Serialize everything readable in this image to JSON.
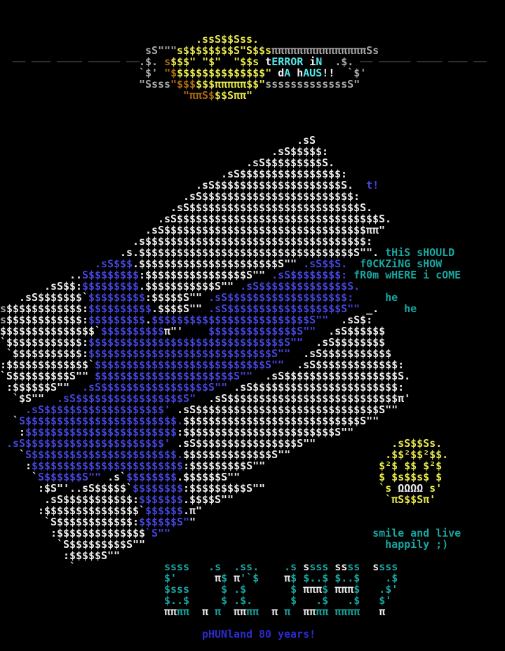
{
  "title": "terror in da haus - ascii art",
  "phrases": {
    "header_line1": "tERROR iN",
    "header_line2": "dA hAUS!!",
    "flag_note": "t!",
    "side_note_1": "tHiS sHOULD",
    "side_note_2": "f0CKZiNG sHOW",
    "side_note_3": "fR0m wHERE i cOME",
    "laugh_1": "he",
    "laugh_2": "he",
    "smiley_caption_1": "smile and live",
    "smiley_caption_2": "happily ;)",
    "footer": "pHUNland 80 years!"
  },
  "colors": {
    ".": "#000000",
    "W": "#ededed",
    "G": "#a8a8a8",
    "D": "#3f3f3f",
    "Y": "#e9e94e",
    "O": "#b06a10",
    "B": "#4545dd",
    "N": "#2b2bcc",
    "C": "#18a5a0",
    "T": "#55e6e6"
  },
  "art": [
    [],
    [],
    [],
    [
      [
        ".",
        "                               "
      ],
      [
        "Y",
        ".ssS$$Sss."
      ]
    ],
    [
      [
        ".",
        "                       "
      ],
      [
        "G",
        "sS\"\"\""
      ],
      [
        "Y",
        "s$$$$$$$$S\"S$$s"
      ],
      [
        "G",
        "πππππππππππππππ"
      ],
      [
        "G",
        "Ss"
      ]
    ],
    [
      [
        ".",
        "  "
      ],
      [
        "D",
        "── ─── ──── ───── ──"
      ],
      [
        "G",
        ".$."
      ],
      [
        ".ated",
        " "
      ],
      [
        "O",
        "s"
      ],
      [
        "Y",
        "$$$\""
      ],
      [
        ".ad",
        " "
      ],
      [
        "Y",
        "\"$\""
      ],
      [
        ".",
        "  "
      ],
      [
        "Y",
        "\"$$s"
      ],
      [
        ".t",
        " "
      ],
      [
        "W",
        "t"
      ],
      [
        "T",
        "ERROR"
      ],
      [
        ".s",
        " "
      ],
      [
        "W",
        "i"
      ],
      [
        "T",
        "N"
      ],
      [
        ".",
        "  "
      ],
      [
        "G",
        ".$."
      ],
      [
        ".d",
        " "
      ],
      [
        "D",
        "── ───── ──── ─── ──"
      ]
    ],
    [
      [
        ".",
        "                      "
      ],
      [
        "G",
        "`$'"
      ],
      [
        ".s",
        " "
      ],
      [
        "O",
        "\"$"
      ],
      [
        "Y",
        "$$$$$$$$$$$$$$\""
      ],
      [
        ".w",
        " "
      ],
      [
        "W",
        "d"
      ],
      [
        "T",
        "A"
      ],
      [
        ".h",
        " "
      ],
      [
        "W",
        "h"
      ],
      [
        "T",
        "AUS"
      ],
      [
        "W",
        "!!"
      ],
      [
        ".",
        "  "
      ],
      [
        "G",
        "`$'"
      ]
    ],
    [
      [
        ".",
        "                      "
      ],
      [
        "G",
        "\"Ssss"
      ],
      [
        "O",
        "\"$$$"
      ],
      [
        "Y",
        "$$$πππππ$$\""
      ],
      [
        "G",
        "sssssssssssssS\""
      ]
    ],
    [
      [
        ".",
        "                             "
      ],
      [
        "O",
        "\"ππS$"
      ],
      [
        "Y",
        "$$Sππ\""
      ]
    ],
    [],
    [],
    [],
    [
      [
        ".",
        "                                               "
      ],
      [
        "W",
        ".sS"
      ]
    ],
    [
      [
        ".",
        "                                           "
      ],
      [
        "W",
        ".sS$$$$$:"
      ]
    ],
    [
      [
        ".",
        "                                       "
      ],
      [
        "W",
        ".sS$$$$$$$$$S."
      ]
    ],
    [
      [
        ".",
        "                                   "
      ],
      [
        "W",
        ".sS$$$$$$$$$$$$$$$$:"
      ]
    ],
    [
      [
        ".",
        "                               "
      ],
      [
        "W",
        ".sS$$$$$$$$$$$$$$$$$$$$S."
      ],
      [
        ".",
        "  "
      ],
      [
        "B",
        "t!"
      ]
    ],
    [
      [
        ".",
        "                             "
      ],
      [
        "W",
        ".sS$$$$$$$$$$$$$$$$$$$$$$$$:"
      ]
    ],
    [
      [
        ".",
        "                           "
      ],
      [
        "W",
        ".sS$$$$$$$$$$$$$$$$$$$$$$$$$$$S."
      ]
    ],
    [
      [
        ".",
        "                         "
      ],
      [
        "W",
        ".sS$$$$$$$$$$$$$$$$$$$$$$$$$$$$$$$$S."
      ]
    ],
    [
      [
        ".",
        "                       "
      ],
      [
        "W",
        ".sS$$$$$$$$$$$$$$$$$$$$$$$$$$$$$$$$ππ\""
      ]
    ],
    [
      [
        ".",
        "                     "
      ],
      [
        "W",
        ".s$$$$$$$$$$$$$$$$$$$$$$$$$$$$$$$$$$$:"
      ]
    ],
    [
      [
        ".",
        "                   "
      ],
      [
        "W",
        ".s.$$$$$$$$$$$$$$$$$$$$$$$$$$$$$$$$$$S\"\"."
      ],
      [
        ".s",
        " "
      ],
      [
        "C",
        "tHiS sHOULD"
      ]
    ],
    [
      [
        ".",
        "               "
      ],
      [
        "B",
        ".sS$$$"
      ],
      [
        "W",
        ".$$$$$$$$$$$$$$$$$$$$$$S\"\""
      ],
      [
        ".f",
        " "
      ],
      [
        "B",
        ".sS$$S."
      ],
      [
        ".",
        "  "
      ],
      [
        "C",
        "f0CKZiNG sHOW"
      ]
    ],
    [
      [
        ".",
        "           "
      ],
      [
        "W",
        ".."
      ],
      [
        "B",
        "S$$$$$$$$"
      ],
      [
        "W",
        ":$$$$$$$$$$$$$$$$S\"\""
      ],
      [
        ".r",
        " "
      ],
      [
        "B",
        ".sS$$$$$$$$:"
      ],
      [
        ".m",
        " "
      ],
      [
        "C",
        "fR0m wHERE i cOME"
      ]
    ],
    [
      [
        ".",
        "       "
      ],
      [
        "W",
        ".sS$$:"
      ],
      [
        "B",
        "$$$$$$$$$"
      ],
      [
        "W",
        ".$$$$$$$$$$$S\"\""
      ],
      [
        ".b",
        " "
      ],
      [
        "B",
        ".sS$$$$$$$$$$$$$$S."
      ]
    ],
    [
      [
        ".",
        "   "
      ],
      [
        "W",
        ".sS$$$$$$$`"
      ],
      [
        "B",
        "$$$$$$$$$"
      ],
      [
        "W",
        ":$$$$$S\"\""
      ],
      [
        ".n",
        " "
      ],
      [
        "B",
        ".sS$$$$$$$$$$$$$$$$$$$:"
      ],
      [
        ".",
        "     "
      ],
      [
        "C",
        "he"
      ]
    ],
    [
      [
        "G",
        "s"
      ],
      [
        "W",
        "$$$$$$$$$$$$:"
      ],
      [
        "B",
        "$$$$$$$$$$"
      ],
      [
        "W",
        ".$$$$S\"\""
      ],
      [
        ".q",
        " "
      ],
      [
        "B",
        ".sS$$$$$$$$$$$$$$$$$$S\"\""
      ],
      [
        ".u",
        " "
      ],
      [
        "W",
        "_."
      ],
      [
        ".",
        "    "
      ],
      [
        "C",
        "he"
      ]
    ],
    [
      [
        "G",
        "s"
      ],
      [
        "W",
        "$$$$$$$$$$$$:"
      ],
      [
        "B",
        "$$$$$$$$$"
      ],
      [
        "W",
        "."
      ],
      [
        "B",
        "$$$$$$$$$$$$$$$$$$$$$$$$$S\"\""
      ],
      [
        ".",
        "  "
      ],
      [
        "W",
        ".sS$:"
      ]
    ],
    [
      [
        "W",
        "$$$$$$$$$$$$$$$`"
      ],
      [
        "B",
        "$$$$$$$$$$"
      ],
      [
        "W",
        "π\"'"
      ],
      [
        ".",
        "    "
      ],
      [
        "B",
        "$$$$$$$$$$$$$$S\"\""
      ],
      [
        ".",
        "  "
      ],
      [
        "W",
        ".sS$$$$$$"
      ]
    ],
    [
      [
        "W",
        "`$$$$$$$$$$$$:"
      ],
      [
        "B",
        "$$$$$$$$$$$$$$$$$$$$$$$$$$$$$$$S\"\""
      ],
      [
        ".",
        "  "
      ],
      [
        "W",
        ".sS$$$$$$$$"
      ]
    ],
    [
      [
        ".t",
        " "
      ],
      [
        "W",
        "`$$$$$$$$$$$:"
      ],
      [
        "B",
        "$$$$$$$$$$$$$$$$$$$$$$$$$$$$$S\"\""
      ],
      [
        ".",
        "  "
      ],
      [
        "W",
        ".sS$$$$$$$$$$$"
      ]
    ],
    [
      [
        "W",
        ":$$$$$$$$$$$$$`"
      ],
      [
        "B",
        "$$$$$$$$$$$$$$$$$$$$$$$$$$$S\"\""
      ],
      [
        ".",
        "  "
      ],
      [
        "W",
        ".sS$$$$$$$$$$$$$:"
      ]
    ],
    [
      [
        "W",
        "`S$$$$$$$$$S\"\""
      ],
      [
        ".y",
        " "
      ],
      [
        "B",
        "$$$$$$$$$$$$$$$$$$$$$$S\"\""
      ],
      [
        ".",
        "  "
      ],
      [
        "W",
        ".sS$$$$$$$$$$$$$$$$$$S."
      ]
    ],
    [
      [
        ".z",
        " "
      ],
      [
        "W",
        ":$$$$$$S\"\""
      ],
      [
        ".",
        "  "
      ],
      [
        "B",
        ".sS$$$$$$$$$$$$$$$$$S\"\""
      ],
      [
        ".x",
        " "
      ],
      [
        "W",
        ".sS$$$$$$$$$$$$$$$$$$$$$$$:"
      ]
    ],
    [
      [
        ".",
        "  "
      ],
      [
        "W",
        "`$S\"\""
      ],
      [
        ".",
        "  "
      ],
      [
        "B",
        ".sS$$$$$$$$$$$$$$$$$S\""
      ],
      [
        ".",
        "  "
      ],
      [
        "W",
        ".sS$$$$$$$$$$$$$$$$$$$$$$$$$$$π'"
      ]
    ],
    [
      [
        ".",
        "    "
      ],
      [
        "B",
        ".sS$$$$$$$$$$$$$$$$$$$'"
      ],
      [
        ".c",
        " "
      ],
      [
        "W",
        ".sS$$$$$$$$$$$$$$$$$$$$$$$$$$$$$S\"\""
      ]
    ],
    [
      [
        ".",
        "  "
      ],
      [
        "W",
        "`"
      ],
      [
        "B",
        "S$$$$$$$$$$$$$$$$$$$$$$$$."
      ],
      [
        "W",
        "$$$$$$$$$$$$$$$$$$$$$$$$$$$$S\"\""
      ]
    ],
    [
      [
        ".",
        "   "
      ],
      [
        "W",
        ":"
      ],
      [
        "B",
        "$$$$$$$$$$$$$$$$$$$$$$$$"
      ],
      [
        "W",
        ":$$$$$$$$$$$$$$$$$$$$$$$$S\"\""
      ]
    ],
    [
      [
        ".v",
        " "
      ],
      [
        "B",
        ".sS$$$$$$$$$$$$$$$$$$$$$$'"
      ],
      [
        ".e",
        " "
      ],
      [
        "W",
        ".sS$$$$$$$$$$$$$$$$S\"\""
      ],
      [
        ".",
        "            "
      ],
      [
        "Y",
        ".sS$$Ss."
      ]
    ],
    [
      [
        ".",
        "   "
      ],
      [
        "W",
        "`"
      ],
      [
        "B",
        "S$$$$$$$$$$$$$$$$$$$$$$$."
      ],
      [
        "W",
        "$$$$$$$$$$$$$$S\"\""
      ],
      [
        ".",
        "               "
      ],
      [
        "Y",
        ".$$²$$²$$."
      ]
    ],
    [
      [
        ".",
        "    "
      ],
      [
        "W",
        ":"
      ],
      [
        "B",
        "$$$$$$$$$$$$$$$$$$$$$$$$"
      ],
      [
        "W",
        ":$$$$$$$$$S\"\""
      ],
      [
        ".",
        "                  "
      ],
      [
        "Y",
        "$²$ $$ $²$"
      ]
    ],
    [
      [
        ".",
        "     "
      ],
      [
        "W",
        "`"
      ],
      [
        "B",
        "S$$$$$$S\"\""
      ],
      [
        ".g",
        " "
      ],
      [
        "W",
        ".s`"
      ],
      [
        "B",
        "$$$$$$$$"
      ],
      [
        "W",
        ".$$$$$$S\"\""
      ],
      [
        ".",
        "                      "
      ],
      [
        "Y",
        "$ $s$$s$ $"
      ]
    ],
    [
      [
        ".",
        "      "
      ],
      [
        "W",
        ":$S\"'..sS$$$$$`"
      ],
      [
        "B",
        "$$$$$$$$"
      ],
      [
        "W",
        ":$$$$$$$$$S\"\""
      ],
      [
        ".",
        "                  "
      ],
      [
        "Y",
        "`s"
      ],
      [
        ".j",
        " "
      ],
      [
        "W",
        "ΩΩΩΩ"
      ],
      [
        ".k",
        " "
      ],
      [
        "Y",
        "s'"
      ]
    ],
    [
      [
        ".",
        "       "
      ],
      [
        "W",
        ".sS$$$$$$$$$$$:"
      ],
      [
        "B",
        "$$$$$$$"
      ],
      [
        "W",
        ".$$$$S\"\""
      ],
      [
        ".",
        "                        "
      ],
      [
        "Y",
        "`πS$$Sπ'"
      ]
    ],
    [
      [
        ".",
        "      "
      ],
      [
        "W",
        ":$$$$$$$$$$$$$$$`"
      ],
      [
        "B",
        "$$$$$$"
      ],
      [
        "W",
        ".π\""
      ]
    ],
    [
      [
        ".",
        "       "
      ],
      [
        "W",
        "`S$$$$$$$$$$$$:"
      ],
      [
        "B",
        "$$$$$$S\""
      ],
      [
        "W",
        "\""
      ]
    ],
    [
      [
        ".",
        "        "
      ],
      [
        "W",
        ":$$$$$$$$$$$$$$"
      ],
      [
        "B",
        "`S\"\""
      ],
      [
        ".",
        "                                "
      ],
      [
        "C",
        "smile and live"
      ]
    ],
    [
      [
        ".",
        "         "
      ],
      [
        "W",
        "`S$$$$$$$$$S\"\""
      ],
      [
        ".",
        "                                      "
      ],
      [
        "C",
        "happily ;)"
      ]
    ],
    [
      [
        ".",
        "          "
      ],
      [
        "W",
        ":$$$$$S\"\""
      ]
    ],
    [
      [
        ".",
        "           "
      ],
      [
        "W",
        "`"
      ],
      [
        ".",
        "              "
      ],
      [
        "C",
        "ssss"
      ],
      [
        ".",
        "   "
      ],
      [
        "C",
        ".s"
      ],
      [
        ".",
        "  "
      ],
      [
        "C",
        ".ss."
      ],
      [
        ".",
        "    "
      ],
      [
        "C",
        ".s"
      ],
      [
        ".p",
        " "
      ],
      [
        "W",
        "s"
      ],
      [
        "C",
        "sss"
      ],
      [
        ".o",
        " "
      ],
      [
        "W",
        "ss"
      ],
      [
        "C",
        "ss"
      ],
      [
        ".",
        "  "
      ],
      [
        "W",
        "s"
      ],
      [
        "C",
        "sss"
      ]
    ],
    [
      [
        ".",
        "                          "
      ],
      [
        "C",
        "$'"
      ],
      [
        ".",
        "      "
      ],
      [
        "W",
        "π"
      ],
      [
        "C",
        "$"
      ],
      [
        ".1",
        " "
      ],
      [
        "W",
        "π"
      ],
      [
        "C",
        "'`$"
      ],
      [
        ".",
        "    "
      ],
      [
        "W",
        "π"
      ],
      [
        "C",
        "$"
      ],
      [
        ".2",
        " "
      ],
      [
        "C",
        "$..$"
      ],
      [
        ".3",
        " "
      ],
      [
        "C",
        "$..$"
      ],
      [
        ".",
        "    "
      ],
      [
        "C",
        ".$"
      ]
    ],
    [
      [
        ".",
        "                          "
      ],
      [
        "C",
        "$sss"
      ],
      [
        ".",
        "     "
      ],
      [
        "C",
        "$"
      ],
      [
        ".4",
        " "
      ],
      [
        "C",
        ".$"
      ],
      [
        ".",
        "       "
      ],
      [
        "C",
        "$"
      ],
      [
        ".5",
        " "
      ],
      [
        "W",
        "πππ"
      ],
      [
        "C",
        "$"
      ],
      [
        ".6",
        " "
      ],
      [
        "W",
        "πππ"
      ],
      [
        "C",
        "$"
      ],
      [
        ".",
        "   "
      ],
      [
        "C",
        ".$'"
      ]
    ],
    [
      [
        ".",
        "                          "
      ],
      [
        "C",
        "$..$"
      ],
      [
        ".",
        "     "
      ],
      [
        "C",
        "$"
      ],
      [
        ".7",
        " "
      ],
      [
        "C",
        ".$."
      ],
      [
        ".",
        "      "
      ],
      [
        "C",
        "$"
      ],
      [
        ".",
        "   "
      ],
      [
        "C",
        ".$"
      ],
      [
        ".",
        "   "
      ],
      [
        "C",
        ".$"
      ],
      [
        ".",
        "   "
      ],
      [
        "C",
        "$'"
      ]
    ],
    [
      [
        ".",
        "                          "
      ],
      [
        "W",
        "ππ"
      ],
      [
        "C",
        "ππ"
      ],
      [
        ".",
        "  "
      ],
      [
        "W",
        "π"
      ],
      [
        ".8",
        " "
      ],
      [
        "C",
        "π"
      ],
      [
        ".",
        "  "
      ],
      [
        "W",
        "ππ"
      ],
      [
        "C",
        "ππ"
      ],
      [
        ".",
        "  "
      ],
      [
        "W",
        "π"
      ],
      [
        ".9",
        " "
      ],
      [
        "C",
        "π"
      ],
      [
        ".",
        "  "
      ],
      [
        "W",
        "ππ"
      ],
      [
        "C",
        "ππ"
      ],
      [
        ".0",
        " "
      ],
      [
        "C",
        "ππππ"
      ],
      [
        ".",
        "   "
      ],
      [
        "W",
        "π"
      ]
    ],
    [],
    [
      [
        ".",
        "                                "
      ],
      [
        "N",
        "pHUNland 80 years!"
      ]
    ],
    []
  ]
}
